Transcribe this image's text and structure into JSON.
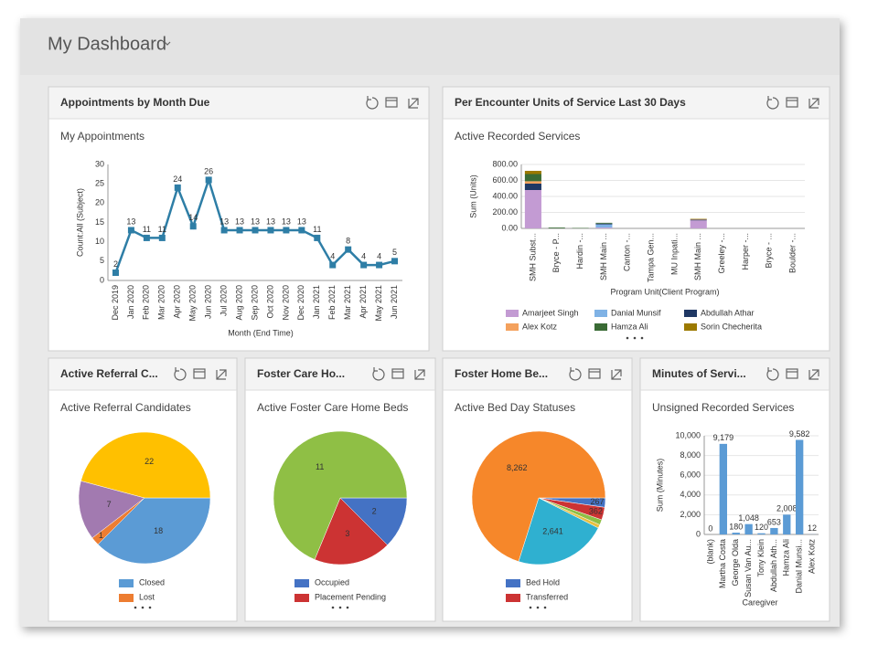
{
  "header": {
    "title": "My Dashboard"
  },
  "chart_data": [
    {
      "type": "line",
      "panel_title": "Appointments by Month Due",
      "title": "My Appointments",
      "x_label": "Month (End Time)",
      "y_label": "Count:All (Subject)",
      "categories": [
        "Dec 2019",
        "Jan 2020",
        "Feb 2020",
        "Mar 2020",
        "Apr 2020",
        "May 2020",
        "Jun 2020",
        "Jul 2020",
        "Aug 2020",
        "Sep 2020",
        "Oct 2020",
        "Nov 2020",
        "Dec 2020",
        "Jan 2021",
        "Feb 2021",
        "Mar 2021",
        "Apr 2021",
        "May 2021",
        "Jun 2021"
      ],
      "values": [
        2,
        13,
        11,
        11,
        24,
        14,
        26,
        13,
        13,
        13,
        13,
        13,
        13,
        11,
        4,
        8,
        4,
        4,
        5
      ],
      "color": "#2e7ea6",
      "ylim": [
        0,
        30
      ],
      "yticks": [
        0,
        5,
        10,
        15,
        20,
        25,
        30
      ],
      "grid": false
    },
    {
      "type": "bar",
      "stacked": true,
      "panel_title": "Per Encounter Units of Service Last 30 Days",
      "title": "Active Recorded Services",
      "x_label": "Program Unit(Client Program)",
      "y_label": "Sum (Units)",
      "categories": [
        "SMH Subst...",
        "Bryce - P...",
        "Hardin -...",
        "SMH Main ...",
        "Canton -...",
        "Tampa Gen...",
        "MU Inpati...",
        "SMH Main ...",
        "Greeley -...",
        "Harper -...",
        "Bryce - ...",
        "Boulder -..."
      ],
      "series": [
        {
          "name": "Amarjeet Singh",
          "color": "#c39bd3",
          "values": [
            480,
            0,
            0,
            10,
            0,
            0,
            0,
            100,
            0,
            0,
            0,
            0
          ]
        },
        {
          "name": "Danial Munsif",
          "color": "#7fb2e5",
          "values": [
            0,
            0,
            0,
            40,
            0,
            0,
            0,
            0,
            0,
            0,
            0,
            0
          ]
        },
        {
          "name": "Abdullah Athar",
          "color": "#1f3864",
          "values": [
            80,
            0,
            0,
            10,
            0,
            0,
            0,
            10,
            0,
            0,
            0,
            0
          ]
        },
        {
          "name": "Alex Kotz",
          "color": "#f4a15d",
          "values": [
            30,
            0,
            0,
            0,
            0,
            0,
            0,
            5,
            0,
            0,
            0,
            0
          ]
        },
        {
          "name": "Hamza Ali",
          "color": "#3a6b35",
          "values": [
            90,
            10,
            5,
            10,
            0,
            0,
            0,
            0,
            0,
            0,
            0,
            0
          ]
        },
        {
          "name": "Sorin Checherita",
          "color": "#9c7a00",
          "values": [
            40,
            0,
            0,
            0,
            0,
            0,
            0,
            5,
            0,
            0,
            0,
            0
          ]
        }
      ],
      "ylim": [
        0,
        800
      ],
      "yticks": [
        {
          "value": 0,
          "label": "0.00"
        },
        {
          "value": 200,
          "label": "200.00"
        },
        {
          "value": 400,
          "label": "400.00"
        },
        {
          "value": 600,
          "label": "600.00"
        },
        {
          "value": 800,
          "label": "800.00"
        }
      ],
      "grid": true
    },
    {
      "type": "pie",
      "panel_title": "Active Referral C...",
      "title": "Active Referral Candidates",
      "categories": [
        "Closed",
        "Lost",
        null,
        null
      ],
      "values": [
        18,
        1,
        7,
        22
      ],
      "colors": [
        "#5b9bd5",
        "#ed7d31",
        "#a27ab0",
        "#ffc000"
      ]
    },
    {
      "type": "pie",
      "panel_title": "Foster Care Ho...",
      "title": "Active Foster Care Home Beds",
      "categories": [
        "Occupied",
        "Placement Pending",
        null
      ],
      "values": [
        2,
        3,
        11
      ],
      "colors": [
        "#4472c4",
        "#cc3333",
        "#8fbf45"
      ]
    },
    {
      "type": "pie",
      "panel_title": "Foster Home Be...",
      "title": "Active Bed Day Statuses",
      "categories": [
        "Bed Hold",
        "Transferred",
        null,
        null,
        null,
        null
      ],
      "values": [
        267,
        362,
        150,
        100,
        2641,
        8262
      ],
      "value_labels": [
        "267",
        "362",
        null,
        null,
        "2,641",
        "8,262"
      ],
      "colors": [
        "#4472c4",
        "#cc3333",
        "#8fbf45",
        "#e8c040",
        "#2fb0d0",
        "#f6872a"
      ]
    },
    {
      "type": "bar",
      "panel_title": "Minutes of Servi...",
      "title": "Unsigned Recorded Services",
      "x_label": "Caregiver",
      "y_label": "Sum (Minutes)",
      "categories": [
        "(blank)",
        "Martha Costa",
        "George Olda",
        "Susan Van Au...",
        "Tony Klein",
        "Abdullah Ath...",
        "Hamza Ali",
        "Danial Munsi...",
        "Alex Kotz"
      ],
      "values": [
        0,
        9179,
        180,
        1048,
        120,
        653,
        2008,
        9582,
        12
      ],
      "value_labels": [
        "0",
        "9,179",
        "180",
        "1,048",
        "120",
        "653",
        "2,008",
        "9,582",
        "12"
      ],
      "color": "#5b9bd5",
      "ylim": [
        0,
        10000
      ],
      "yticks": [
        0,
        {
          "value": 2000,
          "label": "2,000"
        },
        {
          "value": 4000,
          "label": "4,000"
        },
        {
          "value": 6000,
          "label": "6,000"
        },
        {
          "value": 8000,
          "label": "8,000"
        },
        {
          "value": 10000,
          "label": "10,000"
        }
      ],
      "grid": true
    }
  ]
}
